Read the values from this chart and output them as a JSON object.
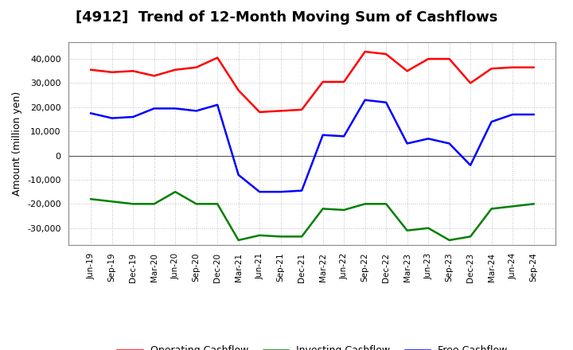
{
  "title": "[4912]  Trend of 12-Month Moving Sum of Cashflows",
  "ylabel": "Amount (million yen)",
  "background_color": "#ffffff",
  "grid_color": "#aaaaaa",
  "x_labels": [
    "Jun-19",
    "Sep-19",
    "Dec-19",
    "Mar-20",
    "Jun-20",
    "Sep-20",
    "Dec-20",
    "Mar-21",
    "Jun-21",
    "Sep-21",
    "Dec-21",
    "Mar-22",
    "Jun-22",
    "Sep-22",
    "Dec-22",
    "Mar-23",
    "Jun-23",
    "Sep-23",
    "Dec-23",
    "Mar-24",
    "Jun-24",
    "Sep-24"
  ],
  "operating": [
    35500,
    34500,
    35000,
    33000,
    35500,
    36500,
    40500,
    27000,
    18000,
    18500,
    19000,
    30500,
    30500,
    43000,
    42000,
    35000,
    40000,
    40000,
    30000,
    36000,
    36500,
    36500
  ],
  "investing": [
    -18000,
    -19000,
    -20000,
    -20000,
    -15000,
    -20000,
    -20000,
    -35000,
    -33000,
    -33500,
    -33500,
    -22000,
    -22500,
    -20000,
    -20000,
    -31000,
    -30000,
    -35000,
    -33500,
    -22000,
    -21000,
    -20000
  ],
  "free": [
    17500,
    15500,
    16000,
    19500,
    19500,
    18500,
    21000,
    -8000,
    -15000,
    -15000,
    -14500,
    8500,
    8000,
    23000,
    22000,
    5000,
    7000,
    5000,
    -4000,
    14000,
    17000,
    17000
  ],
  "ylim": [
    -37000,
    47000
  ],
  "yticks": [
    -30000,
    -20000,
    -10000,
    0,
    10000,
    20000,
    30000,
    40000
  ],
  "line_colors": {
    "operating": "#ff0000",
    "investing": "#008000",
    "free": "#0000ff"
  },
  "line_width": 1.8,
  "title_fontsize": 13,
  "ylabel_fontsize": 9,
  "tick_fontsize": 8,
  "xtick_fontsize": 7.5,
  "legend_fontsize": 9
}
